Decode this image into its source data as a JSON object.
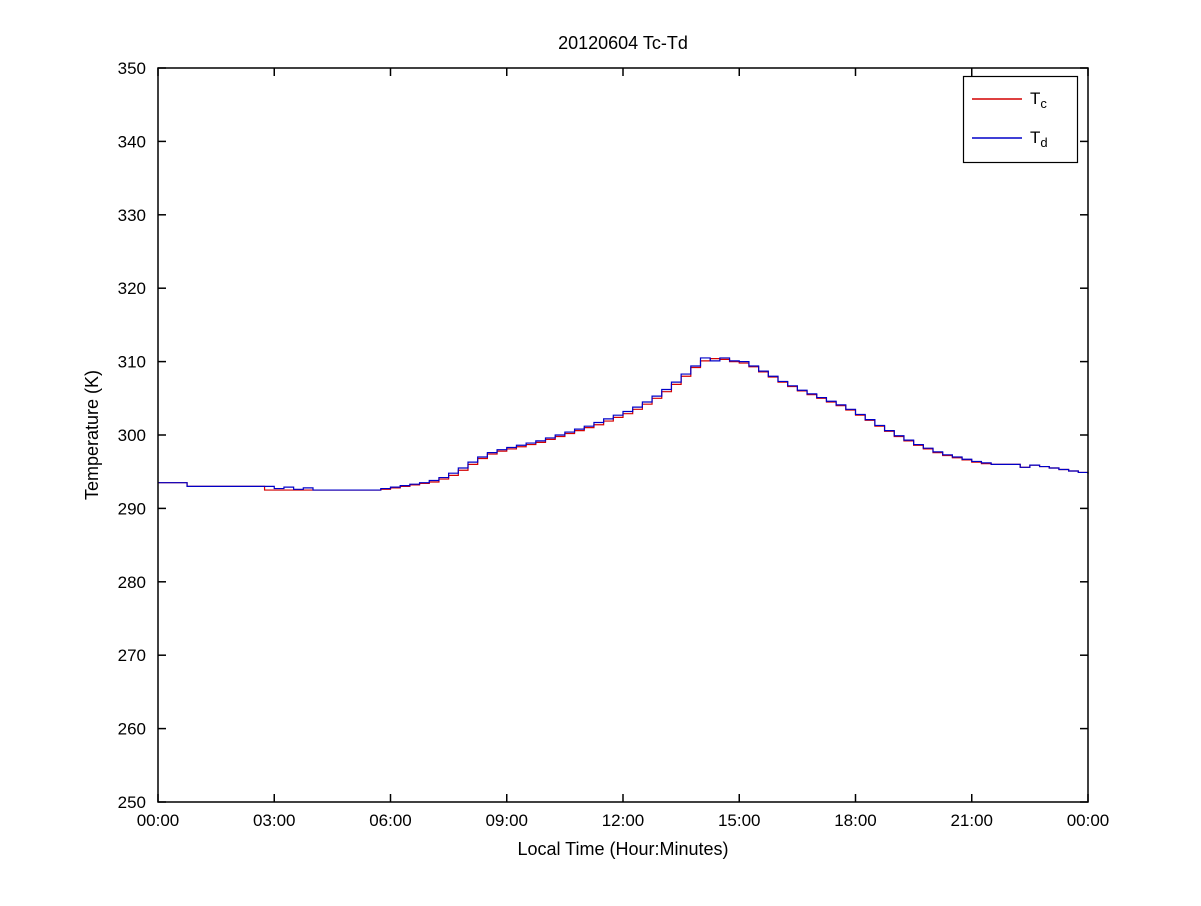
{
  "figure": {
    "background_color": "#ffffff",
    "axis_color": "#000000"
  },
  "chart_data": {
    "type": "line",
    "line_style": "step",
    "title": "20120604 Tc-Td",
    "xlabel": "Local Time (Hour:Minutes)",
    "ylabel": "Temperature (K)",
    "xlim": [
      0,
      24
    ],
    "ylim": [
      250,
      350
    ],
    "grid": false,
    "legend_position": "top-right",
    "x_ticks": [
      0,
      3,
      6,
      9,
      12,
      15,
      18,
      21,
      24
    ],
    "x_tick_labels": [
      "00:00",
      "03:00",
      "06:00",
      "09:00",
      "12:00",
      "15:00",
      "18:00",
      "21:00",
      "00:00"
    ],
    "y_ticks": [
      250,
      260,
      270,
      280,
      290,
      300,
      310,
      320,
      330,
      340,
      350
    ],
    "y_tick_labels": [
      "250",
      "260",
      "270",
      "280",
      "290",
      "300",
      "310",
      "320",
      "330",
      "340",
      "350"
    ],
    "x_step_hours": 0.25,
    "series": [
      {
        "name": "Tc",
        "label_main": "T",
        "label_sub": "c",
        "color": "#d40000",
        "values": [
          293.5,
          293.5,
          293.5,
          293.0,
          293.0,
          293.0,
          293.0,
          293.0,
          293.0,
          293.0,
          293.0,
          292.5,
          292.5,
          292.5,
          292.5,
          292.5,
          292.5,
          292.5,
          292.5,
          292.5,
          292.5,
          292.5,
          292.5,
          292.6,
          292.8,
          293.0,
          293.2,
          293.4,
          293.6,
          294.0,
          294.5,
          295.2,
          296.0,
          296.8,
          297.4,
          297.8,
          298.1,
          298.4,
          298.7,
          299.0,
          299.4,
          299.8,
          300.2,
          300.6,
          301.0,
          301.4,
          301.9,
          302.4,
          302.9,
          303.5,
          304.2,
          305.0,
          305.9,
          306.9,
          308.0,
          309.2,
          310.1,
          310.4,
          310.3,
          310.0,
          309.8,
          309.3,
          308.6,
          307.9,
          307.2,
          306.6,
          306.0,
          305.5,
          305.0,
          304.5,
          304.0,
          303.4,
          302.7,
          302.0,
          301.2,
          300.5,
          299.8,
          299.2,
          298.6,
          298.1,
          297.6,
          297.2,
          296.9,
          296.6,
          296.3,
          296.1,
          296.0,
          296.0,
          296.0,
          295.6,
          295.9,
          295.7,
          295.5,
          295.3,
          295.1,
          294.9,
          294.7
        ]
      },
      {
        "name": "Td",
        "label_main": "T",
        "label_sub": "d",
        "color": "#0000c8",
        "values": [
          293.5,
          293.5,
          293.5,
          293.0,
          293.0,
          293.0,
          293.0,
          293.0,
          293.0,
          293.0,
          293.0,
          293.0,
          292.7,
          292.9,
          292.6,
          292.8,
          292.5,
          292.5,
          292.5,
          292.5,
          292.5,
          292.5,
          292.5,
          292.7,
          292.9,
          293.1,
          293.3,
          293.5,
          293.8,
          294.2,
          294.8,
          295.5,
          296.3,
          297.0,
          297.6,
          298.0,
          298.3,
          298.6,
          298.9,
          299.2,
          299.6,
          300.0,
          300.4,
          300.8,
          301.2,
          301.7,
          302.2,
          302.7,
          303.2,
          303.8,
          304.5,
          305.3,
          306.2,
          307.2,
          308.3,
          309.4,
          310.5,
          310.1,
          310.5,
          310.1,
          310.0,
          309.4,
          308.7,
          308.0,
          307.3,
          306.7,
          306.1,
          305.6,
          305.1,
          304.6,
          304.1,
          303.5,
          302.8,
          302.1,
          301.3,
          300.6,
          299.9,
          299.3,
          298.7,
          298.2,
          297.7,
          297.3,
          297.0,
          296.7,
          296.4,
          296.2,
          296.0,
          296.0,
          296.0,
          295.6,
          295.9,
          295.7,
          295.5,
          295.3,
          295.1,
          294.9,
          294.7
        ]
      }
    ]
  }
}
